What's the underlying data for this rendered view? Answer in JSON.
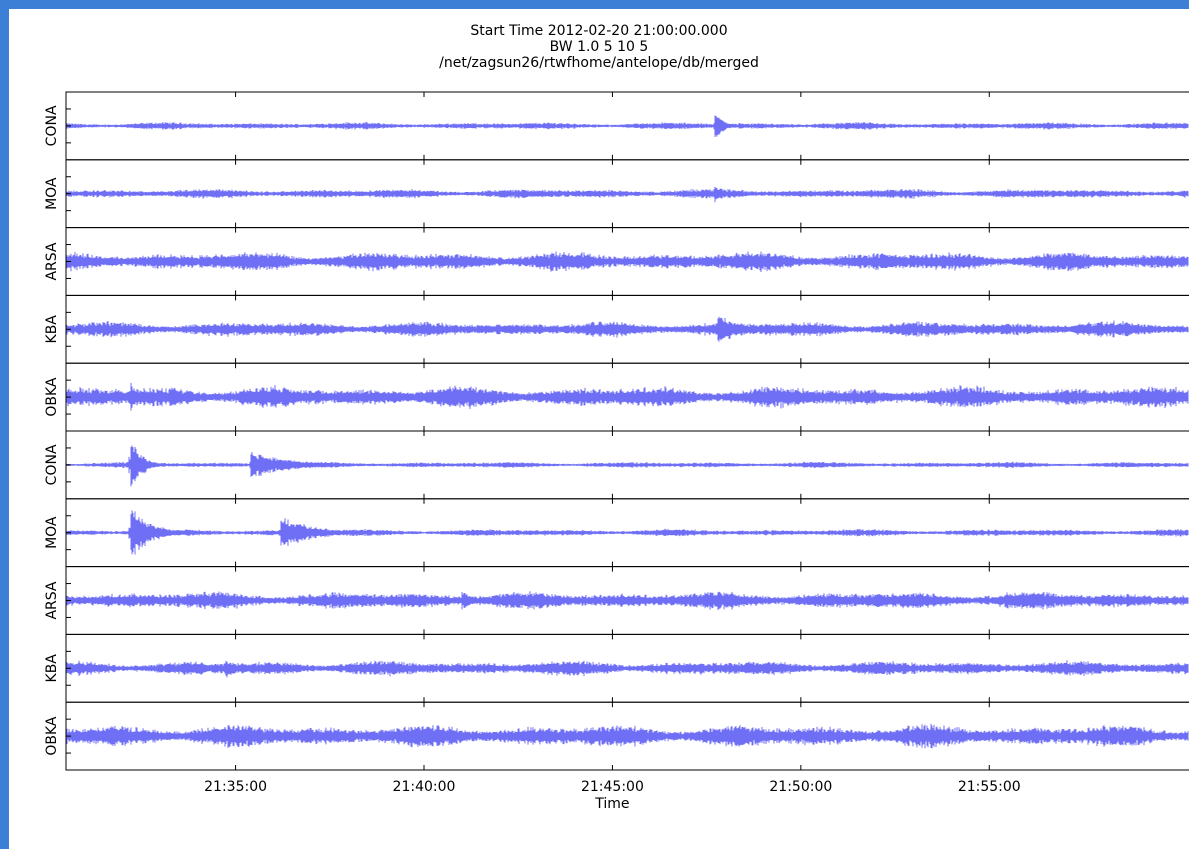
{
  "colors": {
    "trace": "#6f6ff5",
    "frame_bg": "#3c7fd6"
  },
  "chart_data": {
    "type": "line",
    "title_lines": [
      "Start Time 2012-02-20 21:00:00.000",
      "BW 1.0 5 10 5",
      "/net/zagsun26/rtwfhome/antelope/db/merged"
    ],
    "xlabel": "Time",
    "x_ticks": [
      "21:35:00",
      "21:40:00",
      "21:45:00",
      "21:50:00",
      "21:55:00"
    ],
    "x_tick_minutes": [
      35,
      40,
      45,
      50,
      55
    ],
    "xlim_minutes": [
      30.5,
      60.3
    ],
    "grid": false,
    "series": [
      {
        "name": "CONA",
        "noise": 0.12,
        "events": [
          {
            "t": 47.7,
            "amp": 0.55,
            "dur": 0.25
          }
        ]
      },
      {
        "name": "MOA",
        "noise": 0.16,
        "events": [
          {
            "t": 47.7,
            "amp": 0.3,
            "dur": 0.2
          }
        ]
      },
      {
        "name": "ARSA",
        "noise": 0.32,
        "events": [
          {
            "t": 32.2,
            "amp": 0.2,
            "dur": 0.1
          }
        ]
      },
      {
        "name": "KBA",
        "noise": 0.26,
        "events": [
          {
            "t": 47.8,
            "amp": 0.55,
            "dur": 0.6
          }
        ]
      },
      {
        "name": "OBKA",
        "noise": 0.36,
        "events": [
          {
            "t": 32.2,
            "amp": 1.0,
            "dur": 0.08
          }
        ]
      },
      {
        "name": "CONA",
        "noise": 0.1,
        "events": [
          {
            "t": 32.2,
            "amp": 1.0,
            "dur": 0.3
          },
          {
            "t": 35.4,
            "amp": 0.5,
            "dur": 1.0
          }
        ]
      },
      {
        "name": "MOA",
        "noise": 0.12,
        "events": [
          {
            "t": 32.2,
            "amp": 1.0,
            "dur": 0.5
          },
          {
            "t": 36.2,
            "amp": 0.55,
            "dur": 0.9
          }
        ]
      },
      {
        "name": "ARSA",
        "noise": 0.3,
        "events": [
          {
            "t": 41.0,
            "amp": 0.35,
            "dur": 0.4
          },
          {
            "t": 52.0,
            "amp": 0.4,
            "dur": 0.4
          }
        ]
      },
      {
        "name": "KBA",
        "noise": 0.25,
        "events": [
          {
            "t": 34.7,
            "amp": 0.35,
            "dur": 0.4
          }
        ]
      },
      {
        "name": "OBKA",
        "noise": 0.38,
        "events": []
      }
    ]
  }
}
